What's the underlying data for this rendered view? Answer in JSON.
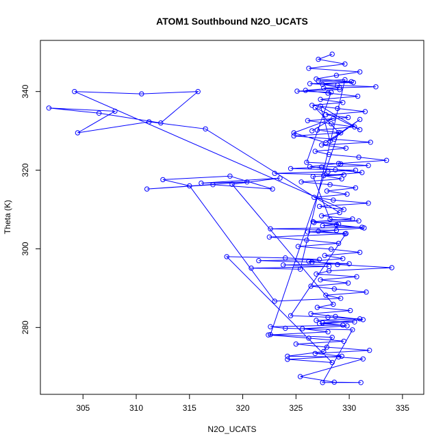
{
  "chart_data": {
    "type": "scatter",
    "mode": "lines+markers",
    "title": "ATOM1 Southbound N2O_UCATS",
    "xlabel": "N2O_UCATS",
    "ylabel": "Theta (K)",
    "xlim": [
      301,
      337
    ],
    "ylim": [
      263,
      353
    ],
    "xticks": [
      305,
      310,
      315,
      320,
      325,
      330,
      335
    ],
    "yticks": [
      280,
      300,
      320,
      340
    ],
    "grid": false,
    "legend": "none",
    "series": [
      {
        "color": "#0000ff",
        "marker": "open-circle",
        "x": [
          328.4,
          327.1,
          329.6,
          326.2,
          331.0,
          328.8,
          326.9,
          330.2,
          327.5,
          329.1,
          325.9,
          328.0,
          330.8,
          327.3,
          329.4,
          326.5,
          328.9,
          331.5,
          327.8,
          329.9,
          326.1,
          328.3,
          330.5,
          327.0,
          329.2,
          324.8,
          328.6,
          332.0,
          327.4,
          329.7,
          326.8,
          328.1,
          330.9,
          333.5,
          329.0,
          326.3,
          328.7,
          331.2,
          327.6,
          329.3,
          325.5,
          328.2,
          330.6,
          327.9,
          329.8,
          326.7,
          328.5,
          331.8,
          327.2,
          329.5,
          304.2,
          310.5,
          315.8,
          312.3,
          306.5,
          301.8,
          308.0,
          304.5,
          311.2,
          316.5,
          329.1,
          327.4,
          330.3,
          326.6,
          328.8,
          331.4,
          327.1,
          329.6,
          322.5,
          326.0,
          329.0,
          325.2,
          328.3,
          331.0,
          327.7,
          329.4,
          326.2,
          328.9,
          334.0,
          328.1,
          326.9,
          330.7,
          327.3,
          329.9,
          326.4,
          328.6,
          331.6,
          327.8,
          329.2,
          323.0,
          315.0,
          312.5,
          318.8,
          322.8,
          317.2,
          311.0,
          320.4,
          316.1,
          323.5,
          319.0,
          328.5,
          327.0,
          330.1,
          326.4,
          328.7,
          331.3,
          327.5,
          329.8,
          325.6,
          328.0,
          322.4,
          326.2,
          329.5,
          325.0,
          327.9,
          331.9,
          326.8,
          329.3,
          324.2,
          328.4,
          318.5,
          324.0,
          327.2,
          321.5,
          326.5,
          330.0,
          323.8,
          328.1,
          320.8,
          325.4,
          329.6,
          327.1,
          330.4,
          326.3,
          328.9,
          332.5,
          327.6,
          329.1,
          325.1,
          328.3,
          326.0,
          329.2,
          331.8,
          327.4,
          324.5,
          330.6,
          328.0,
          323.0,
          329.5,
          326.6,
          328.2,
          330.9,
          326.7,
          329.0,
          327.5,
          331.2,
          322.6,
          328.8,
          326.1,
          329.7,
          324.5,
          328.0,
          331.0,
          326.9,
          330.5,
          327.2,
          329.4,
          322.6,
          324.0,
          330.3,
          327.5,
          331.1,
          328.6,
          325.4,
          331.3,
          329.0,
          324.2,
          327.6,
          328.4,
          322.6,
          329.0,
          326.8,
          331.0,
          327.3,
          328.2,
          331.0,
          327.8,
          324.8,
          328.5,
          326.5
        ],
        "y": [
          349.5,
          348.2,
          347.0,
          345.9,
          345.0,
          344.1,
          343.2,
          342.5,
          341.8,
          341.0,
          340.3,
          339.6,
          338.8,
          338.0,
          337.2,
          336.5,
          335.7,
          334.9,
          334.1,
          333.4,
          332.6,
          331.8,
          331.0,
          330.2,
          329.5,
          328.7,
          327.9,
          327.1,
          326.4,
          325.6,
          324.8,
          324.0,
          323.3,
          322.5,
          321.7,
          320.9,
          320.1,
          319.4,
          318.6,
          317.8,
          317.0,
          316.3,
          315.5,
          314.7,
          313.9,
          313.1,
          312.4,
          311.6,
          310.8,
          310.0,
          340.0,
          339.4,
          340.0,
          332.0,
          334.5,
          335.8,
          335.0,
          329.5,
          332.3,
          330.5,
          309.2,
          308.4,
          307.6,
          306.9,
          306.1,
          305.3,
          304.5,
          303.8,
          303.0,
          302.2,
          301.4,
          300.6,
          299.9,
          299.1,
          298.3,
          297.5,
          296.8,
          296.0,
          295.2,
          294.4,
          293.6,
          292.9,
          292.1,
          291.3,
          290.5,
          289.8,
          289.0,
          288.2,
          287.4,
          286.7,
          316.0,
          317.6,
          318.5,
          315.2,
          316.3,
          315.2,
          317.0,
          316.7,
          318.0,
          316.4,
          285.9,
          285.1,
          284.3,
          283.5,
          282.8,
          282.0,
          281.2,
          280.4,
          279.7,
          278.9,
          278.1,
          277.3,
          276.5,
          275.8,
          275.0,
          274.2,
          273.4,
          272.7,
          271.9,
          271.1,
          298.0,
          297.7,
          297.3,
          297.0,
          296.6,
          296.2,
          295.9,
          295.5,
          295.1,
          294.8,
          343.0,
          342.7,
          342.3,
          342.0,
          341.6,
          341.2,
          340.9,
          340.5,
          340.1,
          339.8,
          322.0,
          321.6,
          321.2,
          320.8,
          320.4,
          320.0,
          319.6,
          319.2,
          318.8,
          318.4,
          307.5,
          307.1,
          306.7,
          306.3,
          305.9,
          305.5,
          305.1,
          304.7,
          304.3,
          303.9,
          283.0,
          282.6,
          282.2,
          281.8,
          281.4,
          281.0,
          280.6,
          280.2,
          279.8,
          279.4,
          266.0,
          266.0,
          266.1,
          267.5,
          272.0,
          272.5,
          272.7,
          273.9,
          277.5,
          278.2,
          329.6,
          335.9,
          330.3,
          336.3,
          327.4,
          332.9,
          327.0,
          329.5,
          333.2,
          330.0
        ]
      }
    ]
  }
}
